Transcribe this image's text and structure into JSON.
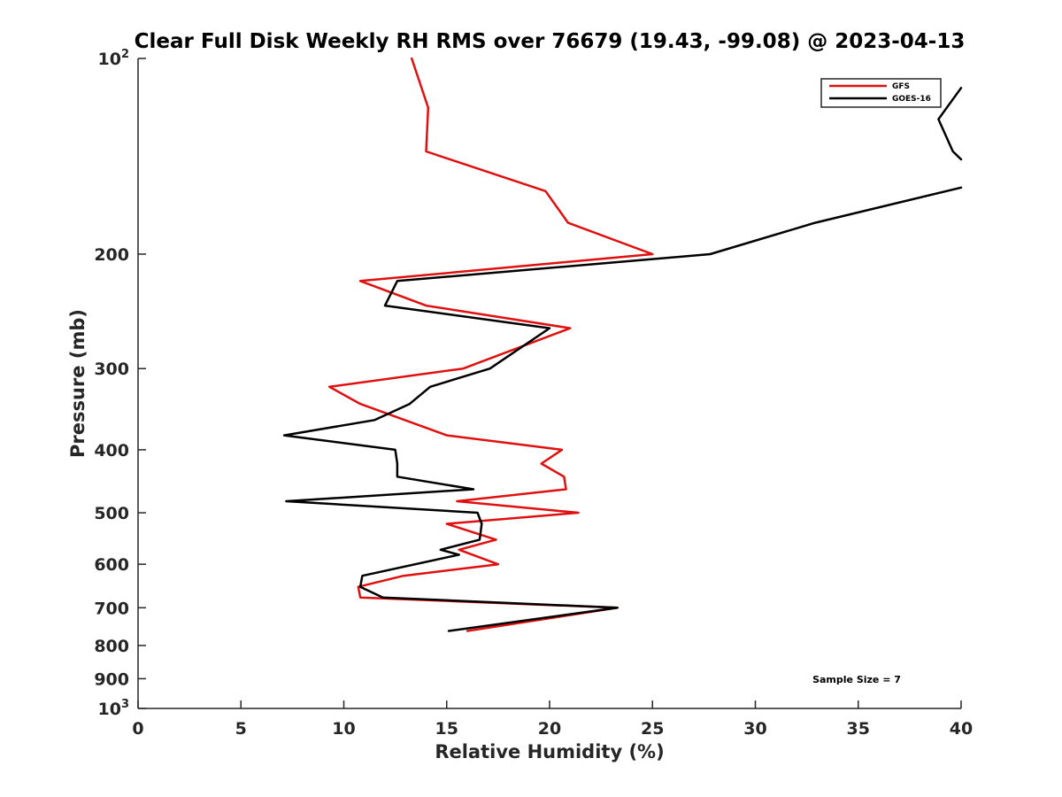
{
  "chart_data": {
    "type": "line",
    "title": "Clear Full Disk Weekly RH RMS over 76679 (19.43, -99.08) @ 2023-04-13",
    "xlabel": "Relative Humidity (%)",
    "ylabel": "Pressure (mb)",
    "xlim": [
      0,
      40
    ],
    "ylim": [
      100,
      1000
    ],
    "yscale": "log",
    "y_reversed": true,
    "x_ticks": [
      "0",
      "5",
      "10",
      "15",
      "20",
      "25",
      "30",
      "35",
      "40"
    ],
    "y_ticks": [
      {
        "value": 100,
        "base": "10",
        "exp": "2"
      },
      {
        "value": 200,
        "label": "200"
      },
      {
        "value": 300,
        "label": "300"
      },
      {
        "value": 400,
        "label": "400"
      },
      {
        "value": 500,
        "label": "500"
      },
      {
        "value": 600,
        "label": "600"
      },
      {
        "value": 700,
        "label": "700"
      },
      {
        "value": 800,
        "label": "800"
      },
      {
        "value": 900,
        "label": "900"
      },
      {
        "value": 1000,
        "base": "10",
        "exp": "3"
      }
    ],
    "legend_position": "top-right",
    "grid": false,
    "annotation": "Sample Size = 7",
    "series": [
      {
        "name": "GFS",
        "color": "#e01010",
        "points": [
          [
            13.3,
            100
          ],
          [
            14.1,
            119
          ],
          [
            14.0,
            139
          ],
          [
            19.8,
            160
          ],
          [
            20.9,
            179
          ],
          [
            25.0,
            200
          ],
          [
            10.8,
            220
          ],
          [
            14.0,
            240
          ],
          [
            21.0,
            260
          ],
          [
            15.8,
            300
          ],
          [
            9.3,
            320
          ],
          [
            10.8,
            340
          ],
          [
            15.0,
            380
          ],
          [
            20.6,
            400
          ],
          [
            19.6,
            420
          ],
          [
            20.7,
            440
          ],
          [
            20.8,
            460
          ],
          [
            15.5,
            480
          ],
          [
            21.4,
            500
          ],
          [
            15.0,
            520
          ],
          [
            17.4,
            550
          ],
          [
            15.6,
            570
          ],
          [
            17.5,
            600
          ],
          [
            12.9,
            625
          ],
          [
            10.7,
            650
          ],
          [
            10.8,
            675
          ],
          [
            23.3,
            700
          ],
          [
            16.0,
            760
          ]
        ]
      },
      {
        "name": "GOES-16",
        "color": "#000000",
        "points": [
          [
            40.0,
            111
          ],
          [
            38.9,
            124
          ],
          [
            39.6,
            139
          ],
          [
            40.0,
            143
          ],
          [
            null,
            150
          ],
          [
            40.0,
            158
          ],
          [
            32.9,
            179
          ],
          [
            27.8,
            200
          ],
          [
            12.6,
            220
          ],
          [
            12.0,
            240
          ],
          [
            20.0,
            260
          ],
          [
            17.1,
            300
          ],
          [
            14.2,
            320
          ],
          [
            13.2,
            340
          ],
          [
            11.5,
            360
          ],
          [
            7.1,
            380
          ],
          [
            12.5,
            400
          ],
          [
            12.6,
            420
          ],
          [
            12.6,
            440
          ],
          [
            16.3,
            460
          ],
          [
            7.2,
            480
          ],
          [
            16.5,
            500
          ],
          [
            16.7,
            520
          ],
          [
            16.6,
            550
          ],
          [
            14.7,
            570
          ],
          [
            15.6,
            580
          ],
          [
            10.9,
            625
          ],
          [
            10.8,
            650
          ],
          [
            11.9,
            675
          ],
          [
            23.3,
            700
          ],
          [
            15.1,
            760
          ]
        ]
      }
    ]
  }
}
